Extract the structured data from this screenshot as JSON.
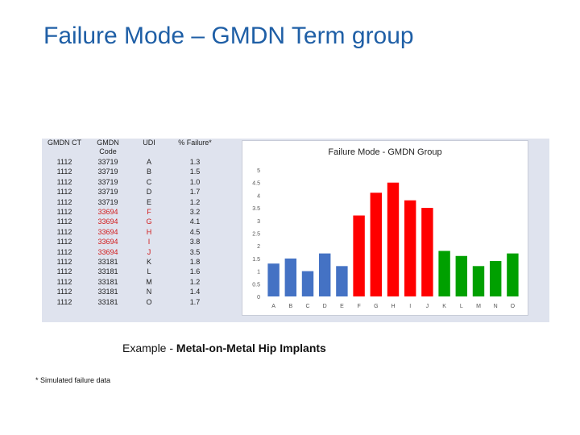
{
  "slide": {
    "title": "Failure Mode – GMDN Term group",
    "caption_prefix": "Example - ",
    "caption_bold": "Metal-on-Metal Hip Implants",
    "footnote": "* Simulated failure data"
  },
  "table": {
    "headers": [
      "GMDN CT",
      "GMDN Code",
      "UDI",
      "% Failure*"
    ],
    "rows": [
      {
        "ct": "1112",
        "code": "33719",
        "udi": "A",
        "pct": "1.3",
        "highlight": false
      },
      {
        "ct": "1112",
        "code": "33719",
        "udi": "B",
        "pct": "1.5",
        "highlight": false
      },
      {
        "ct": "1112",
        "code": "33719",
        "udi": "C",
        "pct": "1.0",
        "highlight": false
      },
      {
        "ct": "1112",
        "code": "33719",
        "udi": "D",
        "pct": "1.7",
        "highlight": false
      },
      {
        "ct": "1112",
        "code": "33719",
        "udi": "E",
        "pct": "1.2",
        "highlight": false
      },
      {
        "ct": "1112",
        "code": "33694",
        "udi": "F",
        "pct": "3.2",
        "highlight": true
      },
      {
        "ct": "1112",
        "code": "33694",
        "udi": "G",
        "pct": "4.1",
        "highlight": true
      },
      {
        "ct": "1112",
        "code": "33694",
        "udi": "H",
        "pct": "4.5",
        "highlight": true
      },
      {
        "ct": "1112",
        "code": "33694",
        "udi": "I",
        "pct": "3.8",
        "highlight": true
      },
      {
        "ct": "1112",
        "code": "33694",
        "udi": "J",
        "pct": "3.5",
        "highlight": true
      },
      {
        "ct": "1112",
        "code": "33181",
        "udi": "K",
        "pct": "1.8",
        "highlight": false
      },
      {
        "ct": "1112",
        "code": "33181",
        "udi": "L",
        "pct": "1.6",
        "highlight": false
      },
      {
        "ct": "1112",
        "code": "33181",
        "udi": "M",
        "pct": "1.2",
        "highlight": false
      },
      {
        "ct": "1112",
        "code": "33181",
        "udi": "N",
        "pct": "1.4",
        "highlight": false
      },
      {
        "ct": "1112",
        "code": "33181",
        "udi": "O",
        "pct": "1.7",
        "highlight": false
      }
    ],
    "highlight_color": "#d11a1a"
  },
  "chart_data": {
    "type": "bar",
    "title": "Failure Mode - GMDN Group",
    "categories": [
      "A",
      "B",
      "C",
      "D",
      "E",
      "F",
      "G",
      "H",
      "I",
      "J",
      "K",
      "L",
      "M",
      "N",
      "O"
    ],
    "values": [
      1.3,
      1.5,
      1.0,
      1.7,
      1.2,
      3.2,
      4.1,
      4.5,
      3.8,
      3.5,
      1.8,
      1.6,
      1.2,
      1.4,
      1.7
    ],
    "bar_colors": [
      "#4472c4",
      "#4472c4",
      "#4472c4",
      "#4472c4",
      "#4472c4",
      "#ff0000",
      "#ff0000",
      "#ff0000",
      "#ff0000",
      "#ff0000",
      "#00a000",
      "#00a000",
      "#00a000",
      "#00a000",
      "#00a000"
    ],
    "yticks": [
      "0",
      "0.5",
      "1",
      "1.5",
      "2",
      "2.5",
      "3",
      "3.5",
      "4",
      "4.5",
      "5"
    ],
    "ylim": [
      0,
      5
    ],
    "xlabel": "",
    "ylabel": "",
    "grid": false
  }
}
